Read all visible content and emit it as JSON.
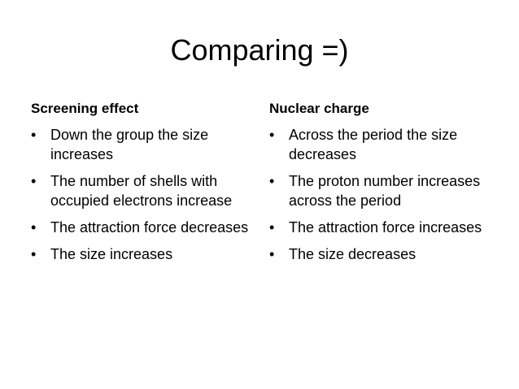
{
  "slide": {
    "title": "Comparing =)",
    "left_column": {
      "heading": "Screening effect",
      "items": [
        "Down the group the size increases",
        "The number of shells with occupied electrons increase",
        "The attraction force decreases",
        "The size increases"
      ]
    },
    "right_column": {
      "heading": "Nuclear charge",
      "items": [
        "Across the period the size decreases",
        "The proton number increases across the period",
        "The attraction force increases",
        "The size decreases"
      ]
    },
    "bullet_glyph": "•"
  }
}
